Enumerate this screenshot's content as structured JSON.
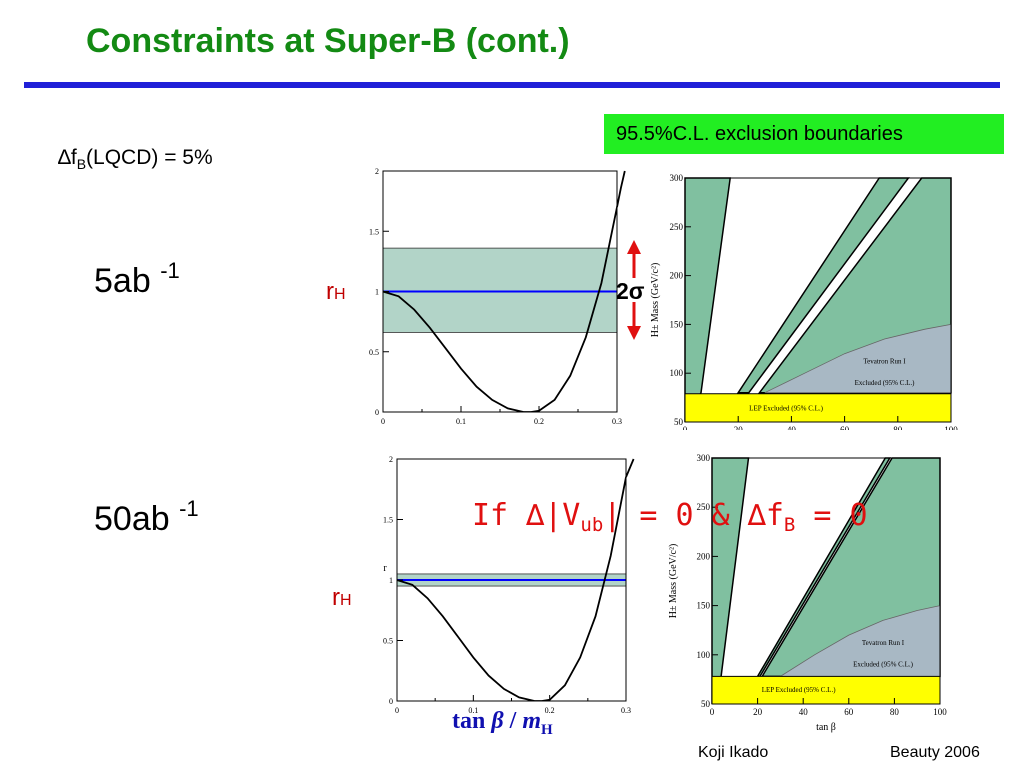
{
  "slide": {
    "title": "Constraints at Super-B (cont.)",
    "cl_box": "95.5%C.L. exclusion boundaries",
    "delta_fb": {
      "delta": "∆",
      "f": "f",
      "sub": "B",
      "rest": "(LQCD) = 5%"
    },
    "lum_top": {
      "base": "5ab ",
      "exp": "-1"
    },
    "lum_bottom": {
      "base": "50ab ",
      "exp": "-1"
    },
    "rh_label": {
      "main": "r",
      "sub": "H"
    },
    "two_sigma": "2σ",
    "if_line": {
      "a": "If ∆|V",
      "a_sub": "ub",
      "b": "| = 0 & ∆f",
      "b_sub": "B",
      "c": " = 0"
    },
    "x_axis_label": {
      "t1": "tan ",
      "t2": "β",
      "t3": " / ",
      "t4": "m",
      "t5": "H"
    },
    "footer_author": "Koji Ikado",
    "footer_event": "Beauty 2006",
    "colors": {
      "title": "#138a13",
      "rule": "#2020d8",
      "cl_box": "#22ee22",
      "band": "#b2d4c8",
      "rh_line": "#0000ff",
      "excluded": "#80c0a0",
      "tevatron": "#a8b8c4",
      "lep": "#ffff00"
    }
  },
  "chart_data": [
    {
      "type": "line",
      "id": "rh-top",
      "x": [
        0,
        0.02,
        0.04,
        0.06,
        0.08,
        0.1,
        0.12,
        0.14,
        0.16,
        0.18,
        0.19,
        0.2,
        0.22,
        0.24,
        0.26,
        0.28,
        0.3
      ],
      "values": [
        1,
        0.96,
        0.85,
        0.7,
        0.53,
        0.36,
        0.21,
        0.1,
        0.03,
        0.0,
        0.0,
        0.01,
        0.1,
        0.3,
        0.62,
        1.07,
        1.7
      ],
      "extra_x": [
        0.3,
        0.305,
        0.31
      ],
      "extra_values": [
        1.7,
        1.86,
        2.0
      ],
      "band": [
        0.66,
        1.36
      ],
      "reference": 1,
      "xlim": [
        0,
        0.3
      ],
      "ylim": [
        0,
        2
      ],
      "xticks": [
        "0",
        "0.1",
        "0.2",
        "0.3"
      ],
      "yticks": [
        "0",
        "0.5",
        "1",
        "1.5",
        "2"
      ]
    },
    {
      "type": "line",
      "id": "rh-bottom",
      "x": [
        0,
        0.02,
        0.04,
        0.06,
        0.08,
        0.1,
        0.12,
        0.14,
        0.16,
        0.18,
        0.19,
        0.2,
        0.22,
        0.24,
        0.26,
        0.28,
        0.3
      ],
      "values": [
        1,
        0.96,
        0.85,
        0.7,
        0.53,
        0.36,
        0.21,
        0.1,
        0.03,
        0.0,
        0.0,
        0.01,
        0.13,
        0.36,
        0.7,
        1.2,
        1.85
      ],
      "extra_x": [
        0.3,
        0.31
      ],
      "extra_values": [
        1.85,
        2.0
      ],
      "band": [
        0.95,
        1.05
      ],
      "reference": 1,
      "axis_fragment": "r",
      "xlim": [
        0,
        0.3
      ],
      "ylim": [
        0,
        2
      ],
      "xticks": [
        "0",
        "0.1",
        "0.2",
        "0.3"
      ],
      "yticks": [
        "0",
        "0.5",
        "1",
        "1.5",
        "2"
      ]
    },
    {
      "type": "area",
      "id": "mass-top",
      "ylabel": "H± Mass (GeV/c²)",
      "xlim": [
        0,
        100
      ],
      "ylim": [
        50,
        300
      ],
      "xticks": [
        "0",
        "20",
        "40",
        "60",
        "80",
        "100"
      ],
      "yticks": [
        "50",
        "100",
        "150",
        "200",
        "250",
        "300"
      ],
      "regions": {
        "excluded_left": [
          [
            0,
            50
          ],
          [
            0,
            300
          ],
          [
            17,
            300
          ],
          [
            6,
            80
          ]
        ],
        "excluded_mid": [
          [
            20,
            80
          ],
          [
            73,
            300
          ],
          [
            84,
            300
          ],
          [
            24,
            80
          ]
        ],
        "excluded_right": [
          [
            28,
            80
          ],
          [
            89,
            300
          ],
          [
            100,
            300
          ],
          [
            100,
            80
          ]
        ],
        "tevatron": [
          [
            30,
            80
          ],
          [
            45,
            100
          ],
          [
            60,
            120
          ],
          [
            75,
            135
          ],
          [
            90,
            145
          ],
          [
            100,
            150
          ],
          [
            100,
            80
          ]
        ],
        "lep": [
          [
            0,
            50
          ],
          [
            100,
            50
          ],
          [
            100,
            79
          ],
          [
            0,
            79
          ]
        ]
      },
      "labels": {
        "tevatron": "Tevatron Run I",
        "tevatron_excl": "Excluded (95% C.L.)",
        "lep": "LEP Excluded (95% C.L.)"
      }
    },
    {
      "type": "area",
      "id": "mass-bottom",
      "ylabel": "H± Mass (GeV/c²)",
      "xlabel": "tan β",
      "xlim": [
        0,
        100
      ],
      "ylim": [
        50,
        300
      ],
      "xticks": [
        "0",
        "20",
        "40",
        "60",
        "80",
        "100"
      ],
      "yticks": [
        "50",
        "100",
        "150",
        "200",
        "250",
        "300"
      ],
      "regions": {
        "excluded_left": [
          [
            0,
            50
          ],
          [
            0,
            300
          ],
          [
            16,
            300
          ],
          [
            4,
            78
          ]
        ],
        "excluded_mid": [
          [
            20,
            78
          ],
          [
            76,
            300
          ],
          [
            78,
            300
          ],
          [
            21,
            78
          ]
        ],
        "excluded_right": [
          [
            22,
            78
          ],
          [
            79,
            300
          ],
          [
            100,
            300
          ],
          [
            100,
            78
          ]
        ],
        "tevatron": [
          [
            30,
            78
          ],
          [
            45,
            100
          ],
          [
            60,
            120
          ],
          [
            75,
            135
          ],
          [
            90,
            145
          ],
          [
            100,
            150
          ],
          [
            100,
            78
          ]
        ],
        "lep": [
          [
            0,
            50
          ],
          [
            100,
            50
          ],
          [
            100,
            78
          ],
          [
            0,
            78
          ]
        ]
      },
      "labels": {
        "tevatron": "Tevatron Run I",
        "tevatron_excl": "Excluded (95% C.L.)",
        "lep": "LEP Excluded (95% C.L.)"
      }
    }
  ]
}
